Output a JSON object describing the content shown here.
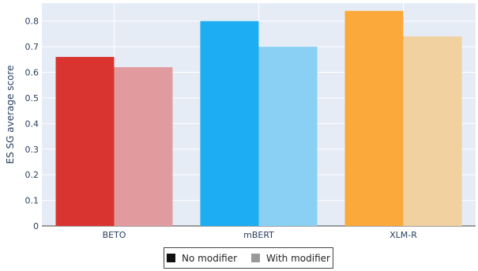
{
  "chart_data": {
    "type": "bar",
    "categories": [
      "BETO",
      "mBERT",
      "XLM-R"
    ],
    "series": [
      {
        "name": "No modifier",
        "values": [
          0.66,
          0.8,
          0.84
        ]
      },
      {
        "name": "With modifier",
        "values": [
          0.62,
          0.7,
          0.74
        ]
      }
    ],
    "colors": {
      "No modifier": [
        "#d9342f",
        "#1cadf2",
        "#fba93a"
      ],
      "With modifier": [
        "#e19b9e",
        "#8ad0f5",
        "#f0d19f"
      ]
    },
    "legend_swatch_colors": [
      "#111111",
      "#999999"
    ],
    "xlabel": "",
    "ylabel": "ES SG average score",
    "ylim": [
      0,
      0.87
    ],
    "yticks": [
      "0",
      "0.1",
      "0.2",
      "0.3",
      "0.4",
      "0.5",
      "0.6",
      "0.7",
      "0.8"
    ],
    "grid": true,
    "legend_position": "bottom-center",
    "plot_background": "#e5ecf6"
  }
}
